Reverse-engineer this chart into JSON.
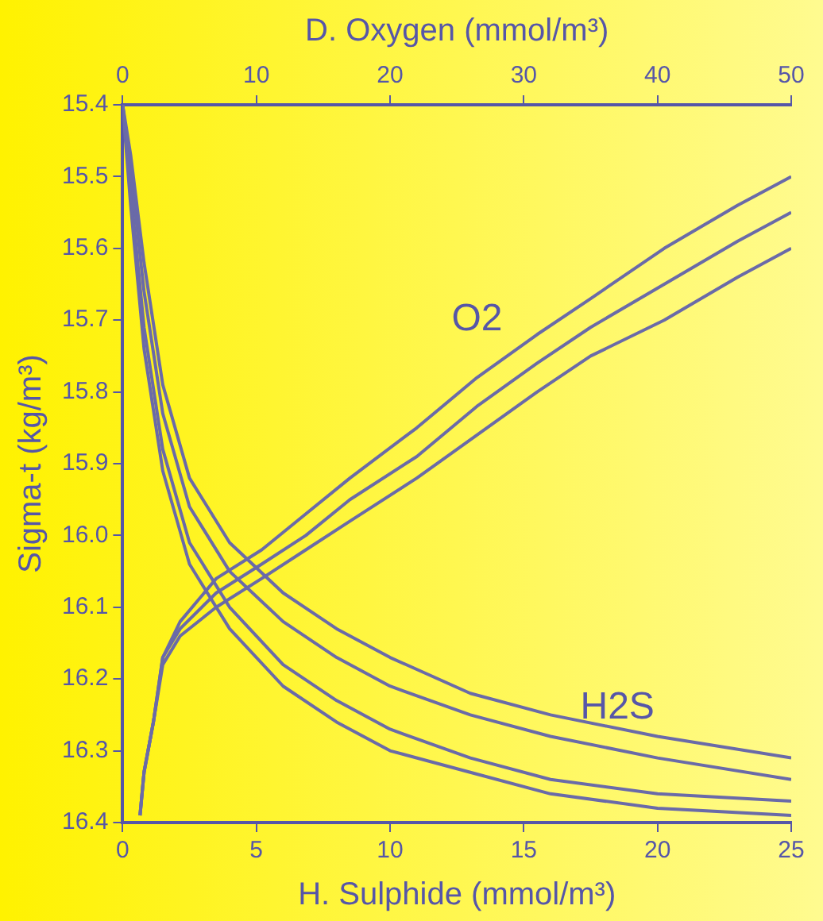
{
  "chart_data": {
    "type": "line",
    "xlabel": "H. Sulphide (mmol/m³)",
    "x2label": "D. Oxygen (mmol/m³)",
    "ylabel": "Sigma-t (kg/m³)",
    "xlim": [
      0,
      25
    ],
    "xticks": [
      0,
      5,
      10,
      15,
      20,
      25
    ],
    "x2lim": [
      0,
      50
    ],
    "x2ticks": [
      0,
      10,
      20,
      30,
      40,
      50
    ],
    "ylim": [
      16.4,
      15.4
    ],
    "yticks": [
      15.4,
      15.5,
      15.6,
      15.7,
      15.8,
      15.9,
      {
        "value": 16,
        "label": "16.0"
      },
      16.1,
      16.2,
      16.3,
      16.4
    ],
    "grid": false,
    "legend": false,
    "marker": "none",
    "line_style": "solid",
    "annotations": [
      "O2",
      "H2S"
    ],
    "series": [
      {
        "color": "#6a6aa8",
        "axis": "x2",
        "x": [
          1.3,
          1.6,
          2.3,
          3,
          4.3,
          7,
          10.4,
          13.7,
          17,
          22,
          26.5,
          31,
          35,
          40.5,
          46,
          50
        ],
        "values": [
          16.39,
          16.33,
          16.26,
          16.17,
          16.12,
          16.06,
          16.02,
          15.97,
          15.92,
          15.85,
          15.78,
          15.72,
          15.67,
          15.6,
          15.54,
          15.5
        ]
      },
      {
        "color": "#6a6aa8",
        "axis": "x2",
        "x": [
          1.3,
          1.6,
          2.3,
          3,
          4.3,
          7,
          10.4,
          13.7,
          17,
          22,
          26.5,
          31,
          35,
          40.5,
          46,
          50
        ],
        "values": [
          16.39,
          16.33,
          16.26,
          16.17,
          16.13,
          16.08,
          16.04,
          16.0,
          15.95,
          15.89,
          15.82,
          15.76,
          15.71,
          15.65,
          15.59,
          15.55
        ]
      },
      {
        "color": "#6a6aa8",
        "axis": "x2",
        "x": [
          1.3,
          1.6,
          2.3,
          3,
          4.3,
          7,
          10.4,
          13.7,
          17,
          22,
          26.5,
          31,
          35,
          40.5,
          46,
          50
        ],
        "values": [
          16.39,
          16.33,
          16.26,
          16.18,
          16.14,
          16.1,
          16.06,
          16.02,
          15.98,
          15.92,
          15.86,
          15.8,
          15.75,
          15.7,
          15.64,
          15.6
        ]
      },
      {
        "color": "#6a6aa8",
        "x": [
          0,
          0.3,
          0.8,
          1.5,
          2.5,
          4,
          6,
          8,
          10,
          13,
          16,
          20,
          25
        ],
        "values": [
          15.4,
          15.47,
          15.62,
          15.79,
          15.92,
          16.01,
          16.08,
          16.13,
          16.17,
          16.22,
          16.25,
          16.28,
          16.31
        ]
      },
      {
        "color": "#6a6aa8",
        "x": [
          0,
          0.3,
          0.8,
          1.5,
          2.5,
          4,
          6,
          8,
          10,
          13,
          16,
          20,
          25
        ],
        "values": [
          15.4,
          15.49,
          15.66,
          15.83,
          15.96,
          16.05,
          16.12,
          16.17,
          16.21,
          16.25,
          16.28,
          16.31,
          16.34
        ]
      },
      {
        "color": "#6a6aa8",
        "x": [
          0,
          0.3,
          0.8,
          1.5,
          2.5,
          4,
          6,
          8,
          10,
          13,
          16,
          20,
          25
        ],
        "values": [
          15.4,
          15.52,
          15.71,
          15.88,
          16.01,
          16.1,
          16.18,
          16.23,
          16.27,
          16.31,
          16.34,
          16.36,
          16.37
        ]
      },
      {
        "color": "#6a6aa8",
        "x": [
          0,
          0.3,
          0.8,
          1.5,
          2.5,
          4,
          6,
          8,
          10,
          13,
          16,
          20,
          25
        ],
        "values": [
          15.4,
          15.54,
          15.74,
          15.91,
          16.04,
          16.13,
          16.21,
          16.26,
          16.3,
          16.33,
          16.36,
          16.38,
          16.39
        ]
      }
    ]
  }
}
